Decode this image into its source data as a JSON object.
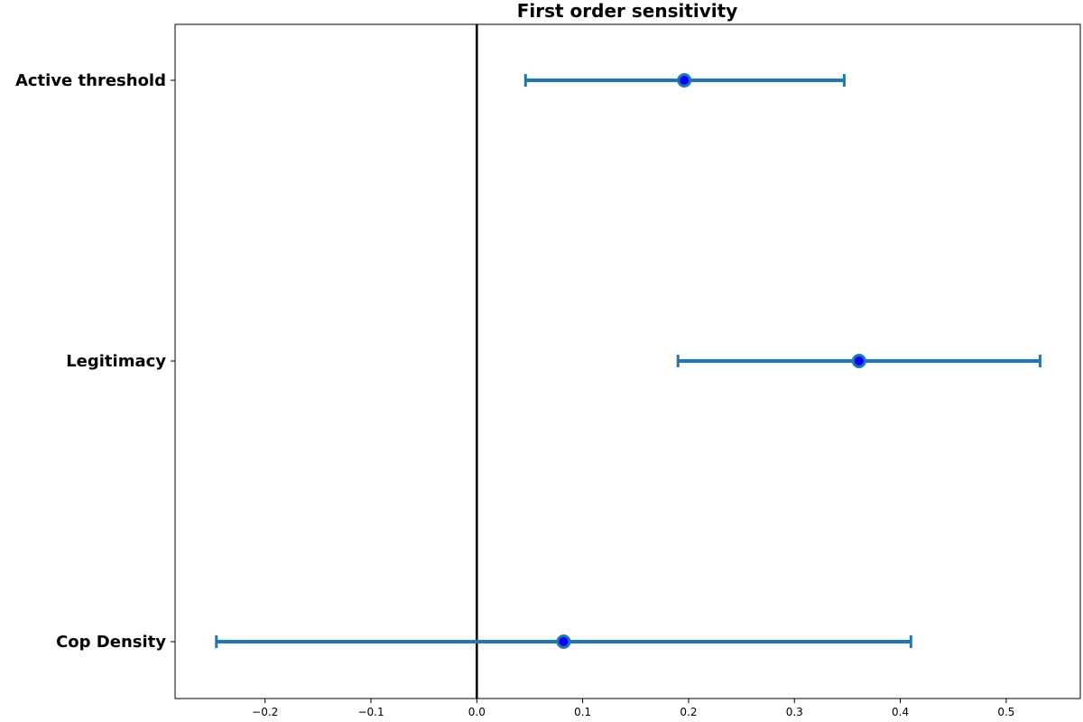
{
  "chart_data": {
    "type": "errorbar",
    "title": "First order sensitivity",
    "xlabel": "",
    "ylabel": "",
    "xlim": [
      -0.285,
      0.57
    ],
    "xticks": [
      -0.2,
      -0.1,
      0.0,
      0.1,
      0.2,
      0.3,
      0.4,
      0.5
    ],
    "xtick_labels": [
      "−0.2",
      "−0.1",
      "0.0",
      "0.1",
      "0.2",
      "0.3",
      "0.4",
      "0.5"
    ],
    "reference_line_x": 0,
    "grid": false,
    "colors": {
      "errorbar": "#1f77b4",
      "marker_fill": "#0000ff",
      "marker_edge": "#1f77b4",
      "reference_line": "#000000"
    },
    "points": [
      {
        "label": "Active threshold",
        "value": 0.196,
        "low": 0.046,
        "high": 0.347
      },
      {
        "label": "Legitimacy",
        "value": 0.361,
        "low": 0.19,
        "high": 0.532
      },
      {
        "label": "Cop Density",
        "value": 0.082,
        "low": -0.246,
        "high": 0.41
      }
    ]
  }
}
